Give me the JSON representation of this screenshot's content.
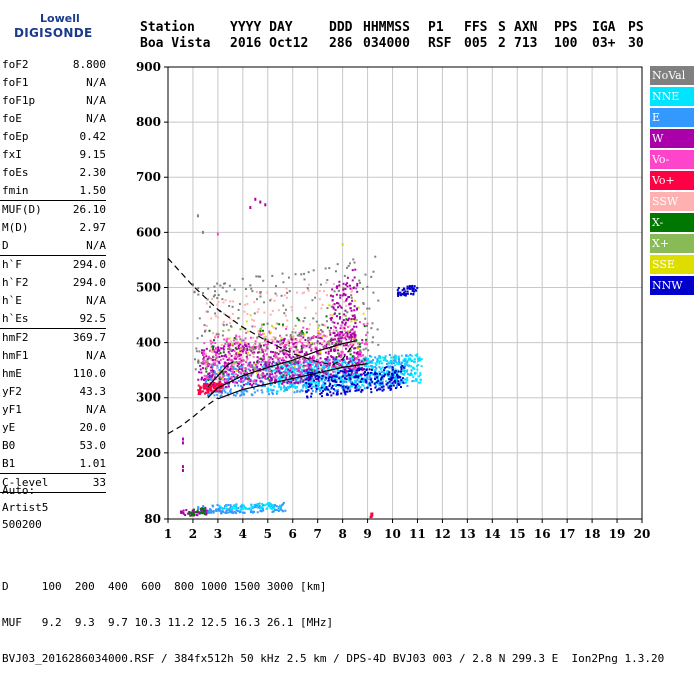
{
  "logo": {
    "top": "Lowell",
    "main": "DIGISONDE"
  },
  "header": {
    "labels": [
      "Station",
      "YYYY DAY",
      "DDD",
      "HHMMSS",
      "P1",
      "FFS",
      "S",
      "AXN",
      "PPS",
      "IGA",
      "PS"
    ],
    "values": [
      "Boa Vista",
      "2016 Oct12",
      "286",
      "034000",
      "RSF",
      "005",
      "2",
      "713",
      "100",
      "03+",
      "30"
    ]
  },
  "params": [
    {
      "label": "foF2",
      "value": "8.800"
    },
    {
      "label": "foF1",
      "value": "N/A"
    },
    {
      "label": "foF1p",
      "value": "N/A"
    },
    {
      "label": "foE",
      "value": "N/A"
    },
    {
      "label": "foEp",
      "value": "0.42"
    },
    {
      "label": "fxI",
      "value": "9.15"
    },
    {
      "label": "foEs",
      "value": "2.30"
    },
    {
      "label": "fmin",
      "value": "1.50"
    },
    {
      "sep": true
    },
    {
      "label": "MUF(D)",
      "value": "26.10"
    },
    {
      "label": "M(D)",
      "value": "2.97"
    },
    {
      "label": "D",
      "value": "N/A"
    },
    {
      "sep": true
    },
    {
      "label": "h`F",
      "value": "294.0"
    },
    {
      "label": "h`F2",
      "value": "294.0"
    },
    {
      "label": "h`E",
      "value": "N/A"
    },
    {
      "label": "h`Es",
      "value": "92.5"
    },
    {
      "sep": true
    },
    {
      "label": "hmF2",
      "value": "369.7"
    },
    {
      "label": "hmF1",
      "value": "N/A"
    },
    {
      "label": "hmE",
      "value": "110.0"
    },
    {
      "label": "yF2",
      "value": "43.3"
    },
    {
      "label": "yF1",
      "value": "N/A"
    },
    {
      "label": "yE",
      "value": "20.0"
    },
    {
      "label": "B0",
      "value": "53.0"
    },
    {
      "label": "B1",
      "value": "1.01"
    },
    {
      "sep": true
    },
    {
      "label": "C-level",
      "value": "33"
    },
    {
      "sep": true
    }
  ],
  "auto": {
    "line1": "Auto:",
    "line2": "Artist5",
    "line3": "500200"
  },
  "legend": [
    {
      "label": "NoVal",
      "bg": "#808080",
      "fg": "#ffffff"
    },
    {
      "label": "NNE",
      "bg": "#00e5ff",
      "fg": "#ffffff"
    },
    {
      "label": "E",
      "bg": "#3399ff",
      "fg": "#ffffff"
    },
    {
      "label": "W",
      "bg": "#aa00aa",
      "fg": "#ffffff"
    },
    {
      "label": "Vo-",
      "bg": "#ff44cc",
      "fg": "#ffffff"
    },
    {
      "label": "Vo+",
      "bg": "#ff0044",
      "fg": "#ffffff"
    },
    {
      "label": "SSW",
      "bg": "#ffb0b0",
      "fg": "#ffffff"
    },
    {
      "label": "X-",
      "bg": "#007700",
      "fg": "#ffffff"
    },
    {
      "label": "X+",
      "bg": "#88bb55",
      "fg": "#ffffff"
    },
    {
      "label": "SSE",
      "bg": "#dddd00",
      "fg": "#ffffff"
    },
    {
      "label": "NNW",
      "bg": "#0000cc",
      "fg": "#ffffff"
    }
  ],
  "footer": {
    "line1": "D     100  200  400  600  800 1000 1500 3000 [km]",
    "line2": "MUF   9.2  9.3  9.7 10.3 11.2 12.5 16.3 26.1 [MHz]",
    "line3": "BVJ03_2016286034000.RSF / 384fx512h 50 kHz 2.5 km / DPS-4D BVJ03 003 / 2.8 N 299.3 E  Ion2Png 1.3.20"
  },
  "chart_data": {
    "type": "scatter",
    "title": "",
    "xlabel": "",
    "ylabel": "",
    "xlim": [
      1,
      20
    ],
    "ylim": [
      80,
      900
    ],
    "xticks": [
      1,
      2,
      3,
      4,
      5,
      6,
      7,
      8,
      9,
      10,
      11,
      12,
      13,
      14,
      15,
      16,
      17,
      18,
      19,
      20
    ],
    "yticks": [
      80,
      200,
      300,
      400,
      500,
      600,
      700,
      800,
      900
    ],
    "grid": true,
    "legend_position": "right",
    "clusters": [
      {
        "series": "E",
        "x": [
          2.5,
          10.8
        ],
        "y": [
          300,
          380
        ],
        "n": 700,
        "color": "#3399ff"
      },
      {
        "series": "NNE",
        "x": [
          5.0,
          11.2
        ],
        "y": [
          310,
          380
        ],
        "n": 500,
        "color": "#00e5ff"
      },
      {
        "series": "W",
        "x": [
          2.2,
          8.8
        ],
        "y": [
          310,
          420
        ],
        "n": 650,
        "color": "#aa00aa"
      },
      {
        "series": "Vo-",
        "x": [
          2.4,
          9.0
        ],
        "y": [
          320,
          440
        ],
        "n": 350,
        "color": "#ff44cc"
      },
      {
        "series": "Vo+",
        "x": [
          2.2,
          3.2
        ],
        "y": [
          305,
          330
        ],
        "n": 90,
        "color": "#ff0044"
      },
      {
        "series": "NNW",
        "x": [
          6.5,
          10.5
        ],
        "y": [
          300,
          360
        ],
        "n": 250,
        "color": "#0000cc"
      },
      {
        "series": "NNW",
        "x": [
          10.2,
          11.0
        ],
        "y": [
          482,
          505
        ],
        "n": 45,
        "color": "#0000cc"
      },
      {
        "series": "SSW",
        "x": [
          2.5,
          8.5
        ],
        "y": [
          350,
          520
        ],
        "n": 180,
        "color": "#ffb0b0"
      },
      {
        "series": "X-",
        "x": [
          2.5,
          9.0
        ],
        "y": [
          320,
          460
        ],
        "n": 60,
        "color": "#007700"
      },
      {
        "series": "X+",
        "x": [
          2.5,
          9.0
        ],
        "y": [
          320,
          460
        ],
        "n": 50,
        "color": "#88bb55"
      },
      {
        "series": "SSE",
        "x": [
          2.5,
          9.0
        ],
        "y": [
          330,
          480
        ],
        "n": 40,
        "color": "#dddd00"
      },
      {
        "series": "NoVal",
        "x": [
          2.0,
          9.5
        ],
        "y": [
          330,
          560
        ],
        "n": 220,
        "color": "#808080"
      },
      {
        "series": "W",
        "x": [
          7.5,
          8.6
        ],
        "y": [
          370,
          540
        ],
        "n": 120,
        "color": "#aa00aa"
      },
      {
        "series": "E",
        "x": [
          2.2,
          5.8
        ],
        "y": [
          88,
          110
        ],
        "n": 160,
        "color": "#3399ff"
      },
      {
        "series": "NNE",
        "x": [
          3.0,
          5.5
        ],
        "y": [
          95,
          110
        ],
        "n": 60,
        "color": "#00e5ff"
      },
      {
        "series": "W",
        "x": [
          1.5,
          2.6
        ],
        "y": [
          84,
          100
        ],
        "n": 40,
        "color": "#aa00aa"
      },
      {
        "series": "X-",
        "x": [
          1.8,
          2.5
        ],
        "y": [
          85,
          100
        ],
        "n": 25,
        "color": "#007700"
      },
      {
        "series": "Vo+",
        "x": [
          9.1,
          9.2
        ],
        "y": [
          82,
          92
        ],
        "n": 10,
        "color": "#ff0044"
      }
    ],
    "points": [
      {
        "series": "W",
        "x": [
          1.6,
          1.6,
          1.6,
          1.6
        ],
        "y": [
          225,
          218,
          175,
          168
        ],
        "color": "#aa00aa"
      },
      {
        "series": "W",
        "x": [
          4.5,
          4.7,
          4.9,
          4.3
        ],
        "y": [
          660,
          655,
          650,
          645
        ],
        "color": "#aa00aa"
      },
      {
        "series": "NoVal",
        "x": [
          2.2,
          2.4,
          2.0
        ],
        "y": [
          630,
          600,
          505
        ],
        "color": "#808080"
      },
      {
        "series": "Vo-",
        "x": [
          3.0
        ],
        "y": [
          597
        ],
        "color": "#ff44cc"
      },
      {
        "series": "SSE",
        "x": [
          8.0
        ],
        "y": [
          578
        ],
        "color": "#dddd00"
      }
    ],
    "lines": [
      {
        "style": "dashed",
        "x": [
          1.0,
          2.0,
          3.0,
          4.0,
          5.0,
          6.0,
          7.0,
          7.6,
          8.0,
          8.4
        ],
        "y": [
          553,
          503,
          460,
          428,
          402,
          380,
          365,
          360,
          370,
          395
        ]
      },
      {
        "style": "dashed",
        "x": [
          1.0,
          1.5,
          2.0,
          2.5,
          3.0
        ],
        "y": [
          235,
          248,
          265,
          284,
          300
        ]
      },
      {
        "style": "solid",
        "x": [
          2.6,
          3.0,
          4.0,
          5.0,
          6.0,
          7.0,
          8.0,
          8.5
        ],
        "y": [
          300,
          318,
          340,
          355,
          368,
          385,
          398,
          403
        ]
      },
      {
        "style": "solid",
        "x": [
          3.0,
          4.0,
          5.0,
          6.0,
          7.0,
          8.0,
          9.0
        ],
        "y": [
          298,
          315,
          325,
          335,
          345,
          355,
          362
        ]
      },
      {
        "style": "solid",
        "x": [
          2.6,
          3.4,
          3.6
        ],
        "y": [
          320,
          360,
          365
        ]
      }
    ]
  }
}
